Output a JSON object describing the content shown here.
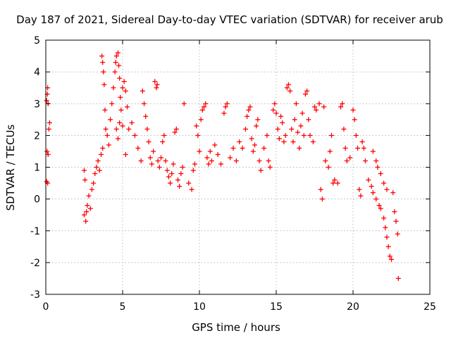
{
  "chart_data": {
    "type": "scatter",
    "title": "Day 187 of 2021, Sidereal Day-to-day VTEC variation (SDTVAR) for receiver arub",
    "xlabel": "GPS time / hours",
    "ylabel": "SDTVAR / TECUs",
    "xlim": [
      0,
      25
    ],
    "ylim": [
      -3,
      5
    ],
    "xticks": [
      "0",
      "5",
      "10",
      "15",
      "20",
      "25"
    ],
    "yticks": [
      "-3",
      "-2",
      "-1",
      "0",
      "1",
      "2",
      "3",
      "4",
      "5"
    ],
    "grid": true,
    "marker": "+",
    "color": "#ff0000",
    "series": [
      {
        "name": "arub",
        "points": [
          [
            0.05,
            3.1
          ],
          [
            0.1,
            3.3
          ],
          [
            0.12,
            3.5
          ],
          [
            0.15,
            3.0
          ],
          [
            0.08,
            1.5
          ],
          [
            0.15,
            1.4
          ],
          [
            0.2,
            2.2
          ],
          [
            0.25,
            2.4
          ],
          [
            0.05,
            0.55
          ],
          [
            0.12,
            0.5
          ],
          [
            2.5,
            0.9
          ],
          [
            2.55,
            0.6
          ],
          [
            2.5,
            -0.5
          ],
          [
            2.6,
            -0.7
          ],
          [
            2.65,
            -0.4
          ],
          [
            2.7,
            -0.2
          ],
          [
            2.8,
            0.1
          ],
          [
            2.9,
            -0.3
          ],
          [
            3.0,
            0.3
          ],
          [
            3.1,
            0.5
          ],
          [
            3.2,
            0.8
          ],
          [
            3.3,
            1.0
          ],
          [
            3.4,
            1.2
          ],
          [
            3.5,
            0.9
          ],
          [
            3.6,
            1.4
          ],
          [
            3.7,
            1.6
          ],
          [
            3.65,
            4.5
          ],
          [
            3.7,
            4.3
          ],
          [
            3.75,
            4.0
          ],
          [
            3.8,
            3.6
          ],
          [
            3.85,
            2.8
          ],
          [
            3.9,
            2.2
          ],
          [
            4.0,
            2.0
          ],
          [
            4.1,
            1.7
          ],
          [
            4.2,
            2.5
          ],
          [
            4.3,
            3.0
          ],
          [
            4.4,
            3.5
          ],
          [
            4.5,
            4.0
          ],
          [
            4.55,
            4.3
          ],
          [
            4.6,
            4.5
          ],
          [
            4.7,
            4.6
          ],
          [
            4.75,
            4.2
          ],
          [
            4.8,
            3.8
          ],
          [
            4.85,
            3.2
          ],
          [
            4.9,
            2.8
          ],
          [
            5.0,
            3.5
          ],
          [
            5.1,
            3.7
          ],
          [
            5.2,
            3.4
          ],
          [
            5.3,
            2.9
          ],
          [
            4.6,
            2.2
          ],
          [
            4.7,
            1.9
          ],
          [
            4.8,
            2.4
          ],
          [
            5.0,
            2.3
          ],
          [
            5.2,
            1.4
          ],
          [
            5.4,
            2.2
          ],
          [
            5.6,
            2.4
          ],
          [
            5.8,
            2.0
          ],
          [
            6.0,
            1.6
          ],
          [
            6.2,
            1.2
          ],
          [
            6.3,
            3.4
          ],
          [
            6.4,
            3.0
          ],
          [
            6.5,
            2.6
          ],
          [
            6.6,
            2.2
          ],
          [
            6.7,
            1.8
          ],
          [
            6.8,
            1.3
          ],
          [
            6.9,
            1.1
          ],
          [
            7.0,
            1.5
          ],
          [
            7.1,
            3.7
          ],
          [
            7.2,
            3.5
          ],
          [
            7.25,
            3.6
          ],
          [
            7.3,
            1.2
          ],
          [
            7.4,
            1.0
          ],
          [
            7.5,
            1.3
          ],
          [
            7.6,
            1.8
          ],
          [
            7.7,
            2.0
          ],
          [
            7.8,
            1.2
          ],
          [
            7.9,
            0.9
          ],
          [
            8.0,
            0.7
          ],
          [
            8.1,
            0.5
          ],
          [
            8.2,
            0.8
          ],
          [
            8.3,
            1.1
          ],
          [
            8.4,
            2.1
          ],
          [
            8.5,
            2.2
          ],
          [
            8.6,
            0.6
          ],
          [
            8.7,
            0.4
          ],
          [
            8.8,
            0.8
          ],
          [
            8.9,
            1.0
          ],
          [
            9.0,
            3.0
          ],
          [
            9.3,
            0.5
          ],
          [
            9.5,
            0.3
          ],
          [
            9.6,
            0.9
          ],
          [
            9.7,
            1.1
          ],
          [
            9.8,
            2.3
          ],
          [
            9.9,
            2.0
          ],
          [
            10.0,
            1.5
          ],
          [
            10.1,
            2.5
          ],
          [
            10.2,
            2.8
          ],
          [
            10.3,
            2.9
          ],
          [
            10.4,
            3.0
          ],
          [
            10.5,
            1.3
          ],
          [
            10.6,
            1.1
          ],
          [
            10.7,
            1.5
          ],
          [
            10.8,
            1.2
          ],
          [
            11.0,
            1.7
          ],
          [
            11.2,
            1.4
          ],
          [
            11.4,
            1.1
          ],
          [
            11.6,
            2.7
          ],
          [
            11.7,
            2.9
          ],
          [
            11.8,
            3.0
          ],
          [
            12.0,
            1.3
          ],
          [
            12.2,
            1.6
          ],
          [
            12.4,
            1.2
          ],
          [
            12.6,
            1.8
          ],
          [
            12.8,
            1.6
          ],
          [
            13.0,
            2.2
          ],
          [
            13.1,
            2.6
          ],
          [
            13.2,
            2.8
          ],
          [
            13.3,
            2.9
          ],
          [
            13.4,
            1.9
          ],
          [
            13.5,
            1.5
          ],
          [
            13.6,
            1.7
          ],
          [
            13.7,
            2.3
          ],
          [
            13.8,
            2.5
          ],
          [
            13.9,
            1.2
          ],
          [
            14.0,
            0.9
          ],
          [
            14.2,
            1.6
          ],
          [
            14.4,
            2.0
          ],
          [
            14.5,
            1.2
          ],
          [
            14.6,
            1.0
          ],
          [
            14.8,
            2.8
          ],
          [
            14.9,
            3.0
          ],
          [
            15.0,
            2.7
          ],
          [
            15.1,
            2.2
          ],
          [
            15.2,
            1.9
          ],
          [
            15.3,
            2.6
          ],
          [
            15.4,
            2.4
          ],
          [
            15.5,
            1.8
          ],
          [
            15.6,
            2.0
          ],
          [
            15.7,
            3.5
          ],
          [
            15.8,
            3.6
          ],
          [
            15.9,
            3.4
          ],
          [
            16.0,
            2.2
          ],
          [
            16.1,
            1.8
          ],
          [
            16.2,
            2.5
          ],
          [
            16.3,
            3.0
          ],
          [
            16.4,
            2.1
          ],
          [
            16.5,
            1.6
          ],
          [
            16.6,
            2.3
          ],
          [
            16.7,
            2.7
          ],
          [
            16.8,
            2.0
          ],
          [
            16.9,
            3.3
          ],
          [
            17.0,
            3.4
          ],
          [
            17.1,
            2.5
          ],
          [
            17.2,
            2.0
          ],
          [
            17.4,
            1.8
          ],
          [
            17.5,
            2.9
          ],
          [
            17.6,
            2.8
          ],
          [
            17.8,
            3.0
          ],
          [
            17.9,
            0.3
          ],
          [
            18.0,
            0.0
          ],
          [
            18.1,
            2.9
          ],
          [
            18.2,
            1.2
          ],
          [
            18.4,
            1.0
          ],
          [
            18.5,
            1.5
          ],
          [
            18.6,
            2.0
          ],
          [
            18.7,
            0.5
          ],
          [
            18.8,
            0.6
          ],
          [
            19.0,
            0.5
          ],
          [
            19.2,
            2.9
          ],
          [
            19.3,
            3.0
          ],
          [
            19.4,
            2.2
          ],
          [
            19.5,
            1.6
          ],
          [
            19.6,
            1.2
          ],
          [
            19.8,
            1.3
          ],
          [
            20.0,
            2.8
          ],
          [
            20.1,
            2.5
          ],
          [
            20.2,
            2.0
          ],
          [
            20.3,
            1.6
          ],
          [
            20.4,
            0.3
          ],
          [
            20.5,
            0.1
          ],
          [
            20.6,
            1.8
          ],
          [
            20.7,
            1.6
          ],
          [
            20.8,
            1.2
          ],
          [
            21.0,
            0.6
          ],
          [
            21.2,
            0.4
          ],
          [
            21.3,
            0.2
          ],
          [
            21.5,
            0.0
          ],
          [
            21.7,
            -0.2
          ],
          [
            21.8,
            -0.3
          ],
          [
            22.0,
            -0.6
          ],
          [
            21.3,
            1.5
          ],
          [
            21.5,
            1.2
          ],
          [
            21.6,
            1.0
          ],
          [
            21.8,
            0.8
          ],
          [
            22.0,
            0.5
          ],
          [
            22.2,
            0.3
          ],
          [
            22.1,
            -0.9
          ],
          [
            22.2,
            -1.2
          ],
          [
            22.3,
            -1.5
          ],
          [
            22.4,
            -1.8
          ],
          [
            22.5,
            -1.9
          ],
          [
            22.6,
            0.2
          ],
          [
            22.7,
            -0.4
          ],
          [
            22.8,
            -0.7
          ],
          [
            22.9,
            -1.1
          ],
          [
            22.95,
            -2.5
          ]
        ]
      }
    ]
  }
}
